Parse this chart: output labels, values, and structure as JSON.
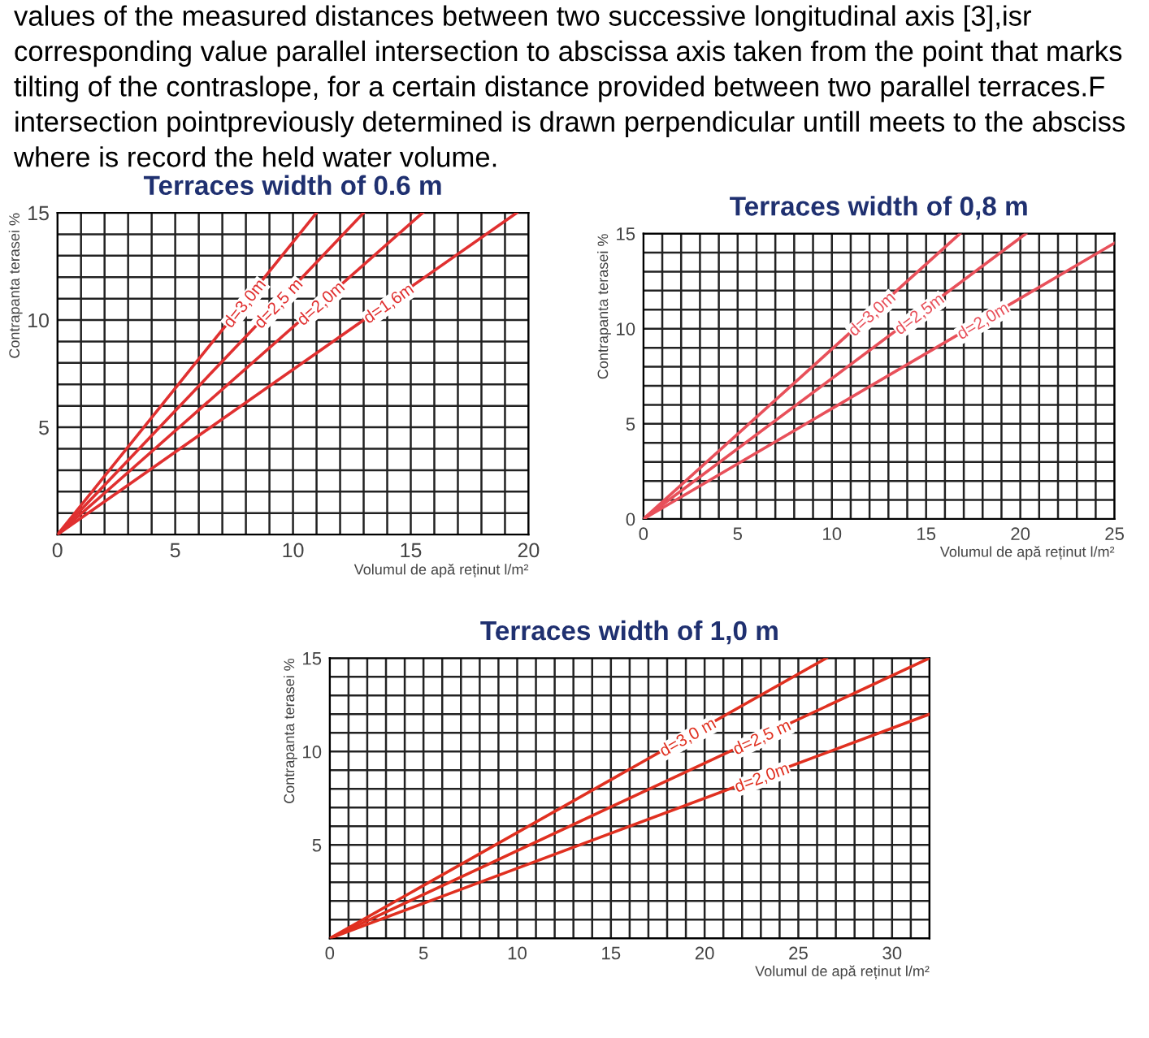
{
  "chart_data": [
    {
      "type": "line",
      "title": "Terraces width of 0.6 m",
      "xlabel": "Volumul de apă reținut l/m²",
      "ylabel": "Contrapanta terasei %",
      "annotations": [
        "values of the measured distances between two successive longitudinal axis [3],isr",
        "corresponding value parallel intersection to abscissa axis taken from the point that marks",
        "tilting of the contraslope, for a certain distance provided between two parallel terraces.F",
        "intersection pointpreviously determined is drawn perpendicular untill meets to the absciss",
        "where is record the held water volume."
      ],
      "xlim": [
        0,
        20
      ],
      "ylim": [
        0,
        15
      ],
      "xticks": [
        0,
        5,
        10,
        15,
        20
      ],
      "yticks": [
        {
          "value": 0,
          "label": null
        },
        5,
        10,
        15
      ],
      "grid": true,
      "legend": false,
      "series": [
        {
          "name": "d=3,0m",
          "color": "#e03030",
          "x": [
            0,
            11
          ],
          "values": [
            0,
            15
          ]
        },
        {
          "name": "d=2,5 m",
          "color": "#e03030",
          "x": [
            0,
            13
          ],
          "values": [
            0,
            15
          ]
        },
        {
          "name": "d=2,0m",
          "color": "#e03030",
          "x": [
            0,
            15.5
          ],
          "values": [
            0,
            15
          ]
        },
        {
          "name": "d=1,6m",
          "color": "#e03030",
          "x": [
            0,
            19.5
          ],
          "values": [
            0,
            15
          ]
        }
      ]
    },
    {
      "type": "line",
      "title": "Terraces width of 0,8 m",
      "xlabel": "Volumul de apă reținut l/m²",
      "ylabel": "Contrapanta terasei %",
      "xlim": [
        0,
        25
      ],
      "ylim": [
        0,
        15
      ],
      "xticks": [
        0,
        5,
        10,
        15,
        20,
        25
      ],
      "yticks": [
        0,
        5,
        10,
        15
      ],
      "grid": true,
      "legend": false,
      "series": [
        {
          "name": "d=3,0m",
          "color": "#e8505a",
          "x": [
            0,
            16.8
          ],
          "values": [
            0,
            15
          ]
        },
        {
          "name": "d=2,5m",
          "color": "#e8505a",
          "x": [
            0,
            20.3
          ],
          "values": [
            0,
            15
          ]
        },
        {
          "name": "d=2,0m",
          "color": "#e8505a",
          "x": [
            0,
            25
          ],
          "values": [
            0,
            14.5
          ]
        }
      ]
    },
    {
      "type": "line",
      "title": "Terraces width of 1,0 m",
      "xlabel": "Volumul de apă reținut l/m²",
      "ylabel": "Contrapanta terasei %",
      "xlim": [
        0,
        32
      ],
      "ylim": [
        0,
        15
      ],
      "xticks": [
        0,
        5,
        10,
        15,
        20,
        25,
        30
      ],
      "yticks": [
        {
          "value": 0,
          "label": null
        },
        5,
        10,
        15
      ],
      "grid": true,
      "legend": false,
      "series": [
        {
          "name": "d=3,0 m",
          "color": "#e03020",
          "x": [
            0,
            26.5
          ],
          "values": [
            0,
            15
          ]
        },
        {
          "name": "d=2,5 m",
          "color": "#e03020",
          "x": [
            0,
            32
          ],
          "values": [
            0,
            15
          ]
        },
        {
          "name": "d=2,0m",
          "color": "#e03020",
          "x": [
            0,
            32
          ],
          "values": [
            0,
            12
          ]
        }
      ]
    }
  ]
}
